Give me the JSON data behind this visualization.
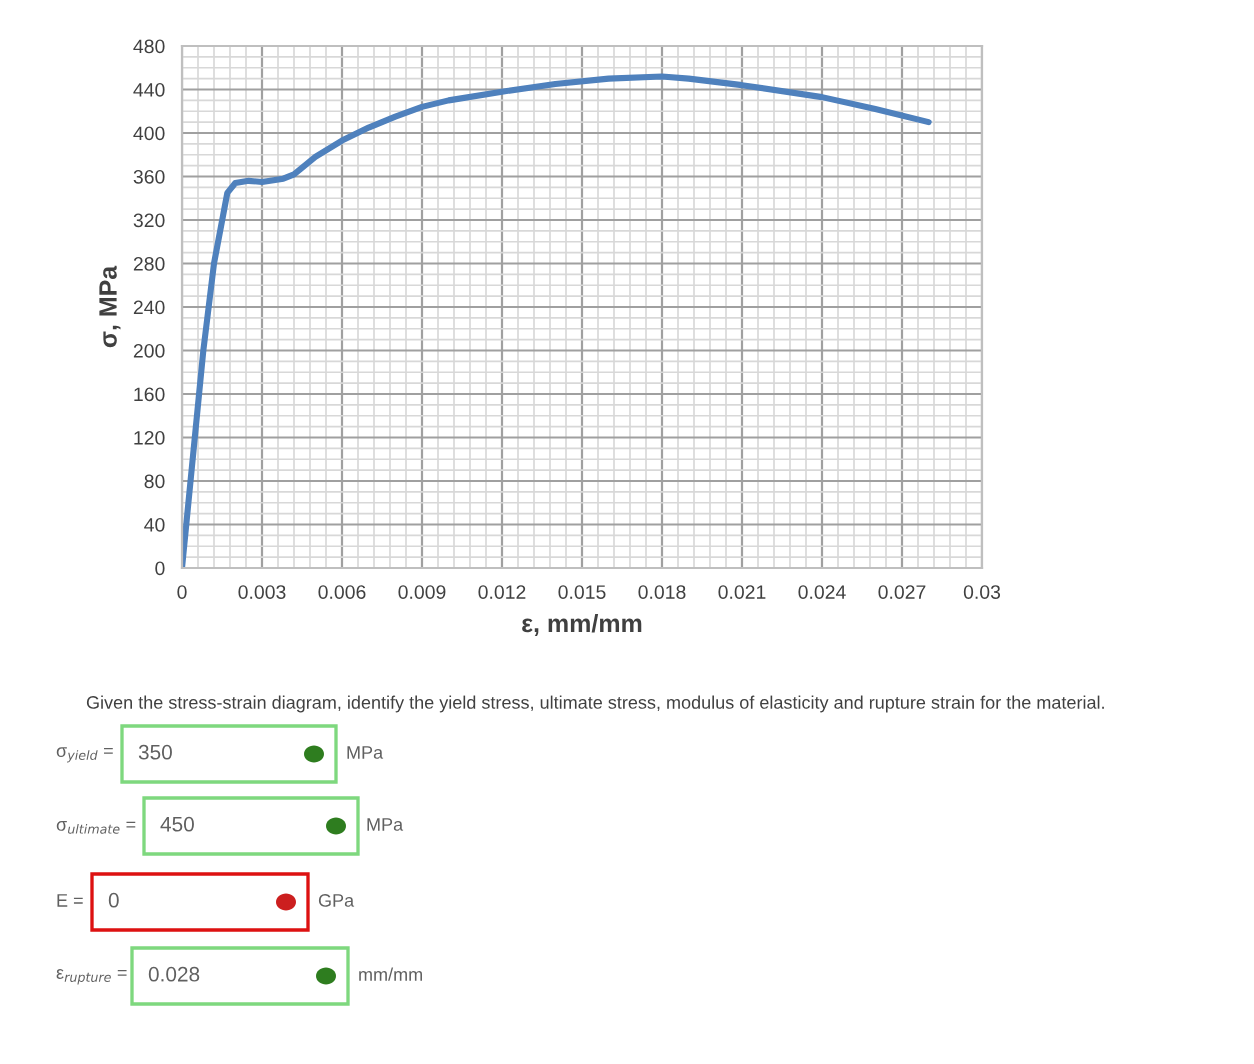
{
  "chart_data": {
    "type": "line",
    "xlabel": "ε, mm/mm",
    "ylabel": "σ, MPa",
    "x": [
      0,
      0.0008,
      0.0012,
      0.0017,
      0.002,
      0.0025,
      0.003,
      0.0038,
      0.0042,
      0.005,
      0.006,
      0.007,
      0.008,
      0.009,
      0.01,
      0.012,
      0.014,
      0.016,
      0.018,
      0.019,
      0.021,
      0.024,
      0.026,
      0.028
    ],
    "series": [
      {
        "color": "#4f81bd",
        "values": [
          0,
          200,
          280,
          345,
          354,
          356,
          355,
          358,
          362,
          378,
          393,
          405,
          415,
          424,
          430,
          438,
          445,
          450,
          452,
          450,
          444,
          433,
          422,
          410
        ]
      }
    ],
    "xlim": [
      0,
      0.03
    ],
    "xticks": [
      0,
      0.003,
      0.006,
      0.009,
      0.012,
      0.015,
      0.018,
      0.021,
      0.024,
      0.027,
      0.03
    ],
    "ylim": [
      0,
      480
    ],
    "yticks": [
      0,
      40,
      80,
      120,
      160,
      200,
      240,
      280,
      320,
      360,
      400,
      440,
      480
    ],
    "grid": true,
    "legend": false,
    "marker": "none",
    "line_style": "solid",
    "annotations": [
      "Given the stress-strain diagram, identify the yield stress, ultimate stress, modulus of elasticity and rupture strain for the material.",
      "σ$_{yield}$ =",
      "350",
      "MPa",
      "σ$_{ultimate}$ =",
      "450",
      "MPa",
      "E =",
      "0",
      "GPa",
      "ε$_{rupture}$ =",
      "0.028",
      "mm/mm"
    ]
  }
}
